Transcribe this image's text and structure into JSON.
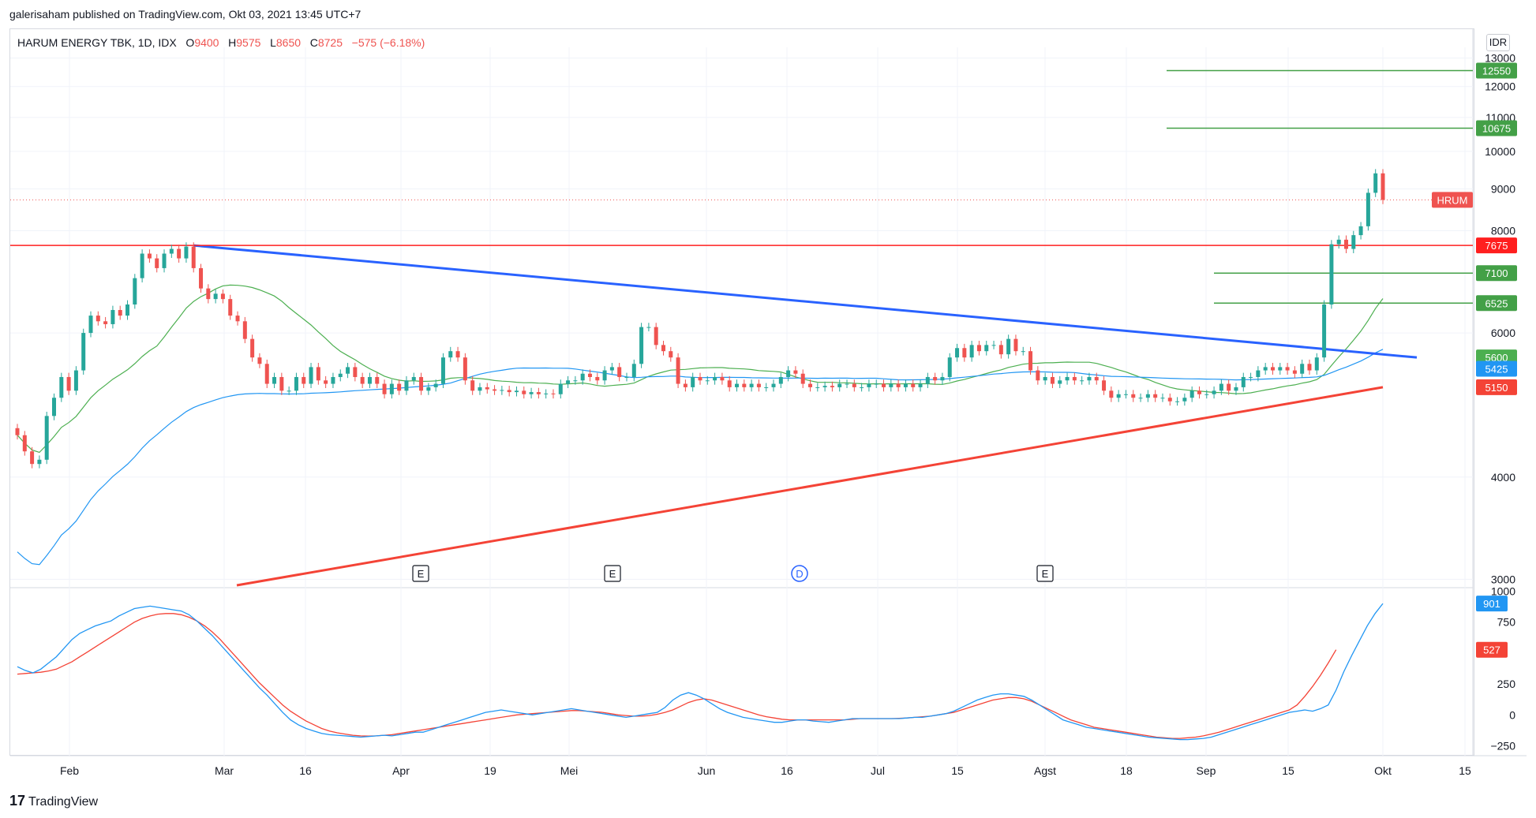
{
  "header": {
    "published_text": "galerisaham published on TradingView.com, Okt 03, 2021 13:45 UTC+7"
  },
  "legend": {
    "symbol": "HARUM ENERGY TBK, 1D, IDX",
    "o_label": "O",
    "o_value": "9400",
    "h_label": "H",
    "h_value": "9575",
    "l_label": "L",
    "l_value": "8650",
    "c_label": "C",
    "c_value": "8725",
    "change": "−575 (−6.18%)"
  },
  "currency": "IDR",
  "footer": {
    "brand": "TradingView",
    "logo": "17"
  },
  "colors": {
    "up": "#26a69a",
    "down": "#ef5350",
    "sma_fast": "#4caf50",
    "sma_slow": "#2196f3",
    "resistance": "#ff1f1f",
    "trend_down": "#2962ff",
    "trend_up": "#f44336",
    "target": "#43a047",
    "macd": "#2196f3",
    "signal": "#f44336"
  },
  "chart_data": [
    {
      "type": "candlestick",
      "title": "HARUM ENERGY TBK, 1D, IDX",
      "xlabel": "",
      "ylabel": "",
      "x_ticks": [
        "Feb",
        "Mar",
        "16",
        "Apr",
        "19",
        "Mei",
        "Jun",
        "16",
        "Jul",
        "15",
        "Agst",
        "18",
        "Sep",
        "15",
        "Okt",
        "15"
      ],
      "y_ticks": [
        "13000",
        "12000",
        "11000",
        "10000",
        "9000",
        "8000",
        "6000",
        "4000",
        "3000"
      ],
      "ylim": [
        2950,
        13400
      ],
      "scale": "log",
      "close_series": [
        4500,
        4300,
        4150,
        4200,
        4750,
        5000,
        5300,
        5100,
        5400,
        6000,
        6300,
        6200,
        6150,
        6400,
        6300,
        6500,
        7000,
        7500,
        7400,
        7200,
        7500,
        7600,
        7400,
        7650,
        7200,
        6800,
        6600,
        6700,
        6600,
        6300,
        6200,
        5900,
        5600,
        5500,
        5200,
        5300,
        5100,
        5100,
        5300,
        5200,
        5450,
        5250,
        5200,
        5300,
        5350,
        5450,
        5300,
        5200,
        5300,
        5200,
        5050,
        5200,
        5100,
        5250,
        5300,
        5100,
        5150,
        5200,
        5600,
        5700,
        5600,
        5250,
        5100,
        5150,
        5120,
        5100,
        5110,
        5080,
        5100,
        5050,
        5080,
        5050,
        5060,
        5050,
        5200,
        5250,
        5250,
        5350,
        5300,
        5250,
        5400,
        5450,
        5300,
        5300,
        5500,
        6100,
        6100,
        5800,
        5700,
        5600,
        5200,
        5150,
        5300,
        5250,
        5250,
        5300,
        5250,
        5150,
        5200,
        5150,
        5200,
        5150,
        5150,
        5200,
        5300,
        5400,
        5350,
        5200,
        5150,
        5150,
        5170,
        5150,
        5200,
        5200,
        5150,
        5150,
        5200,
        5200,
        5150,
        5200,
        5150,
        5200,
        5150,
        5200,
        5300,
        5250,
        5300,
        5600,
        5750,
        5600,
        5800,
        5700,
        5800,
        5800,
        5650,
        5900,
        5700,
        5700,
        5400,
        5250,
        5300,
        5200,
        5250,
        5300,
        5250,
        5250,
        5300,
        5250,
        5100,
        5000,
        5050,
        5050,
        5000,
        5000,
        5050,
        5000,
        5000,
        4950,
        4950,
        5000,
        5100,
        5050,
        5050,
        5100,
        5200,
        5100,
        5150,
        5300,
        5300,
        5400,
        5450,
        5400,
        5450,
        5400,
        5350,
        5500,
        5400,
        5600,
        6500,
        7700,
        7800,
        7600,
        7900,
        8100,
        8900,
        9400,
        8725
      ],
      "sma_fast_label": "5600",
      "sma_slow_label": "5425",
      "support_label": "5150",
      "horizontal_levels": [
        {
          "label": "12550",
          "value": 12550
        },
        {
          "label": "10675",
          "value": 10675
        },
        {
          "label": "7675",
          "value": 7675
        },
        {
          "label": "7100",
          "value": 7100
        },
        {
          "label": "6525",
          "value": 6525
        }
      ],
      "last_price_tag": "HRUM",
      "earnings_markers": [
        "E",
        "E",
        "D",
        "E"
      ]
    },
    {
      "type": "line",
      "title": "",
      "xlabel": "",
      "ylabel": "",
      "y_ticks": [
        "1000",
        "750",
        "250",
        "0",
        "−250"
      ],
      "ylim": [
        -330,
        1010
      ],
      "series": [
        {
          "values": [
            390,
            360,
            340,
            370,
            420,
            470,
            540,
            610,
            660,
            690,
            720,
            740,
            760,
            800,
            830,
            860,
            870,
            880,
            870,
            860,
            850,
            840,
            810,
            760,
            700,
            640,
            570,
            500,
            430,
            360,
            290,
            220,
            160,
            90,
            20,
            -40,
            -80,
            -110,
            -130,
            -150,
            -160,
            -165,
            -170,
            -175,
            -180,
            -175,
            -170,
            -165,
            -170,
            -160,
            -150,
            -140,
            -140,
            -120,
            -100,
            -80,
            -60,
            -40,
            -20,
            0,
            20,
            30,
            40,
            30,
            20,
            10,
            0,
            10,
            20,
            30,
            40,
            50,
            40,
            30,
            20,
            10,
            0,
            -10,
            -20,
            -10,
            0,
            10,
            20,
            60,
            120,
            160,
            180,
            160,
            130,
            90,
            50,
            20,
            0,
            -20,
            -30,
            -40,
            -50,
            -60,
            -60,
            -50,
            -40,
            -40,
            -50,
            -55,
            -60,
            -50,
            -40,
            -30,
            -30,
            -30,
            -30,
            -30,
            -30,
            -30,
            -25,
            -20,
            -20,
            -10,
            0,
            10,
            30,
            60,
            90,
            120,
            140,
            160,
            170,
            170,
            160,
            150,
            120,
            80,
            40,
            0,
            -40,
            -60,
            -80,
            -100,
            -110,
            -120,
            -130,
            -140,
            -150,
            -160,
            -170,
            -180,
            -185,
            -190,
            -195,
            -200,
            -200,
            -195,
            -190,
            -180,
            -160,
            -140,
            -120,
            -100,
            -80,
            -60,
            -40,
            -20,
            0,
            20,
            30,
            40,
            30,
            50,
            80,
            200,
            350,
            480,
            600,
            720,
            820,
            901
          ]
        },
        {
          "values": [
            330,
            335,
            340,
            345,
            355,
            370,
            400,
            430,
            470,
            510,
            550,
            590,
            630,
            670,
            710,
            750,
            780,
            800,
            815,
            820,
            820,
            810,
            790,
            760,
            720,
            670,
            610,
            540,
            470,
            400,
            330,
            260,
            200,
            140,
            80,
            30,
            -10,
            -50,
            -80,
            -110,
            -130,
            -145,
            -155,
            -165,
            -170,
            -172,
            -170,
            -165,
            -160,
            -150,
            -140,
            -130,
            -120,
            -110,
            -100,
            -90,
            -80,
            -70,
            -60,
            -50,
            -40,
            -30,
            -20,
            -10,
            0,
            5,
            10,
            15,
            20,
            25,
            30,
            35,
            35,
            30,
            25,
            20,
            10,
            0,
            -5,
            -10,
            -10,
            -5,
            5,
            20,
            40,
            70,
            100,
            120,
            130,
            120,
            100,
            80,
            60,
            40,
            20,
            0,
            -15,
            -25,
            -35,
            -40,
            -40,
            -40,
            -40,
            -40,
            -40,
            -40,
            -40,
            -35,
            -30,
            -30,
            -30,
            -30,
            -30,
            -28,
            -25,
            -20,
            -15,
            -10,
            0,
            10,
            20,
            40,
            60,
            80,
            100,
            120,
            130,
            140,
            140,
            130,
            110,
            80,
            50,
            20,
            -10,
            -40,
            -60,
            -80,
            -100,
            -110,
            -120,
            -130,
            -140,
            -150,
            -160,
            -170,
            -180,
            -185,
            -190,
            -190,
            -185,
            -180,
            -170,
            -155,
            -140,
            -120,
            -100,
            -80,
            -60,
            -40,
            -20,
            0,
            20,
            40,
            80,
            150,
            230,
            320,
            420,
            527
          ]
        }
      ],
      "macd_label": "901",
      "signal_label": "527"
    }
  ]
}
